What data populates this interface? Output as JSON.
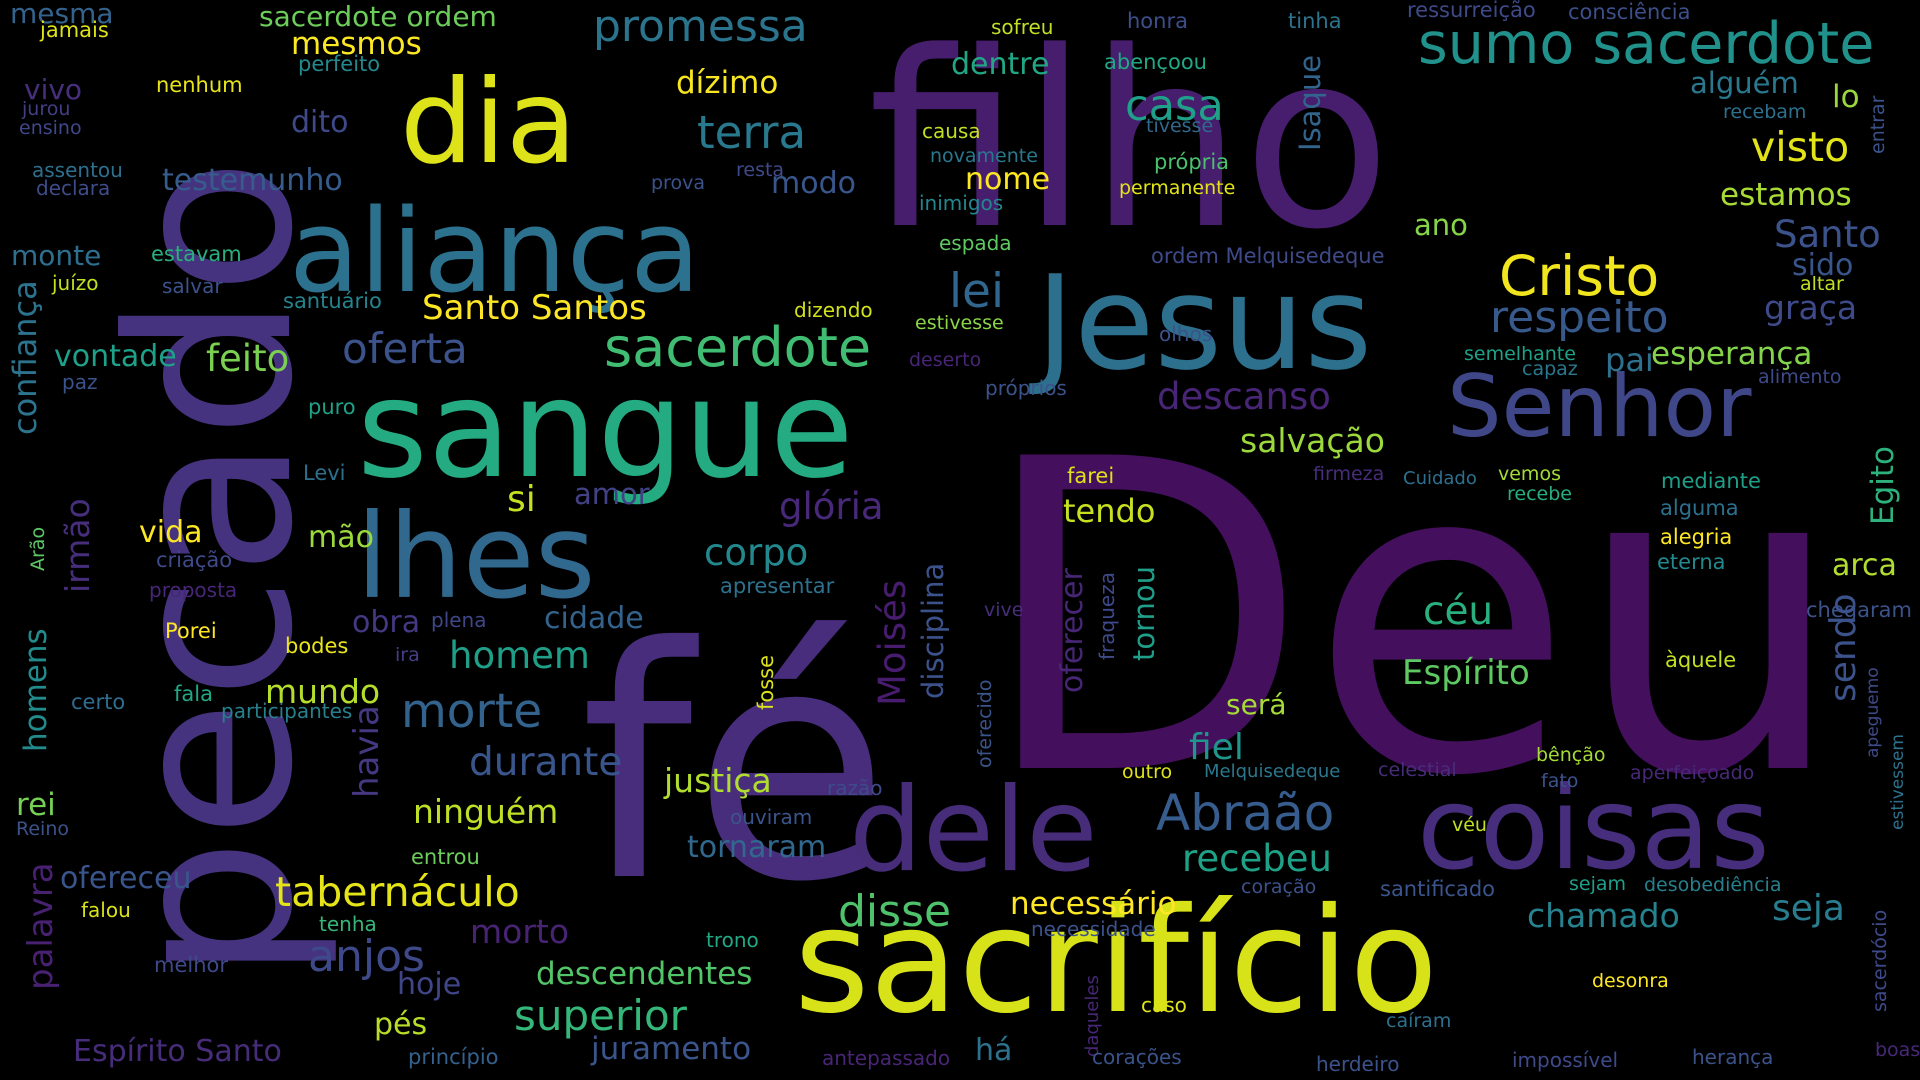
{
  "words": [
    {
      "text": "Deu",
      "color": "#440f5c"
    },
    {
      "text": "filho",
      "color": "#471d6e"
    },
    {
      "text": "fé",
      "color": "#472d7b"
    },
    {
      "text": "pecado",
      "color": "#46337f"
    },
    {
      "text": "sacrifício",
      "color": "#d7e219"
    },
    {
      "text": "sangue",
      "color": "#25ab82"
    },
    {
      "text": "Jesus",
      "color": "#2d708e"
    },
    {
      "text": "aliança",
      "color": "#2c728e"
    },
    {
      "text": "dia",
      "color": "#dde318"
    },
    {
      "text": "coisas",
      "color": "#462e7d"
    },
    {
      "text": "dele",
      "color": "#472c7a"
    },
    {
      "text": "lhes",
      "color": "#31688e"
    },
    {
      "text": "Senhor",
      "color": "#3f4788"
    },
    {
      "text": "sumo sacerdote",
      "color": "#21918c"
    },
    {
      "text": "sacerdote",
      "color": "#40bd72"
    },
    {
      "text": "Cristo",
      "color": "#f1e51d"
    },
    {
      "text": "promessa",
      "color": "#2b748e"
    },
    {
      "text": "terra",
      "color": "#29798e"
    },
    {
      "text": "Abraão",
      "color": "#365d8d"
    },
    {
      "text": "respeito",
      "color": "#38598c"
    },
    {
      "text": "casa",
      "color": "#1fa088"
    },
    {
      "text": "lei",
      "color": "#31678e"
    },
    {
      "text": "visto",
      "color": "#e2e418"
    },
    {
      "text": "morte",
      "color": "#33638d"
    },
    {
      "text": "oferta",
      "color": "#3b528b"
    },
    {
      "text": "feito",
      "color": "#7ad151"
    },
    {
      "text": "Santo Santos",
      "color": "#fde725"
    },
    {
      "text": "tabernáculo",
      "color": "#e5e419"
    },
    {
      "text": "disse",
      "color": "#4ec36b"
    },
    {
      "text": "superior",
      "color": "#35b779"
    },
    {
      "text": "anjos",
      "color": "#3e4989"
    },
    {
      "text": "descanso",
      "color": "#482576"
    },
    {
      "text": "glória",
      "color": "#482878"
    },
    {
      "text": "corpo",
      "color": "#23888e"
    },
    {
      "text": "salvação",
      "color": "#9bd93c"
    },
    {
      "text": "céu",
      "color": "#2ab07f"
    },
    {
      "text": "Espírito",
      "color": "#5ec962"
    },
    {
      "text": "durante",
      "color": "#39558c"
    },
    {
      "text": "homem",
      "color": "#1f9f88"
    },
    {
      "text": "mundo",
      "color": "#b5de2b"
    },
    {
      "text": "ninguém",
      "color": "#bddf26"
    },
    {
      "text": "justiça",
      "color": "#b0dd2f"
    },
    {
      "text": "recebeu",
      "color": "#1fa187"
    },
    {
      "text": "necessário",
      "color": "#fde725"
    },
    {
      "text": "chamado",
      "color": "#26828e"
    },
    {
      "text": "seja",
      "color": "#287d8e"
    },
    {
      "text": "sendo",
      "color": "#3b528b"
    },
    {
      "text": "fiel",
      "color": "#1f958b"
    },
    {
      "text": "descendentes",
      "color": "#52c569"
    },
    {
      "text": "juramento",
      "color": "#3a548c"
    },
    {
      "text": "pai",
      "color": "#2d718e"
    },
    {
      "text": "esperança",
      "color": "#84d44b"
    },
    {
      "text": "graça",
      "color": "#3e4a89"
    },
    {
      "text": "Santo",
      "color": "#3b528b"
    },
    {
      "text": "estamos",
      "color": "#a8db34"
    },
    {
      "text": "alguém",
      "color": "#2a788e"
    },
    {
      "text": "modo",
      "color": "#39568c"
    },
    {
      "text": "dízimo",
      "color": "#f8e621"
    },
    {
      "text": "mesmos",
      "color": "#fbe723"
    },
    {
      "text": "sacerdote ordem",
      "color": "#6ccd5a"
    },
    {
      "text": "dentre",
      "color": "#22a785"
    },
    {
      "text": "nome",
      "color": "#fde725"
    },
    {
      "text": "ano",
      "color": "#86d549"
    },
    {
      "text": "testemunho",
      "color": "#365c8d"
    },
    {
      "text": "dito",
      "color": "#3f4889"
    },
    {
      "text": "vida",
      "color": "#fde725"
    },
    {
      "text": "mão",
      "color": "#9bd93c"
    },
    {
      "text": "obra",
      "color": "#453882"
    },
    {
      "text": "cidade",
      "color": "#33638d"
    },
    {
      "text": "morto",
      "color": "#482374"
    },
    {
      "text": "hoje",
      "color": "#404588"
    },
    {
      "text": "pés",
      "color": "#b8de29"
    },
    {
      "text": "rei",
      "color": "#75d054"
    },
    {
      "text": "ofereceu",
      "color": "#39568c"
    },
    {
      "text": "si",
      "color": "#c5e021"
    },
    {
      "text": "amor",
      "color": "#424186"
    },
    {
      "text": "tendo",
      "color": "#c8e020"
    },
    {
      "text": "será",
      "color": "#a5db36"
    },
    {
      "text": "arca",
      "color": "#b0dd2f"
    },
    {
      "text": "lo",
      "color": "#98d83e"
    },
    {
      "text": "sido",
      "color": "#39568c"
    },
    {
      "text": "vontade",
      "color": "#1fa088"
    },
    {
      "text": "monte",
      "color": "#2e6e8e"
    },
    {
      "text": "vivo",
      "color": "#472f7d"
    },
    {
      "text": "mesma",
      "color": "#33638d"
    },
    {
      "text": "Espírito Santo",
      "color": "#472c7a"
    },
    {
      "text": "tornaram",
      "color": "#31688e"
    },
    {
      "text": "palavra",
      "color": "#482173"
    },
    {
      "text": "Moisés",
      "color": "#481c6e"
    },
    {
      "text": "havia",
      "color": "#453781"
    },
    {
      "text": "irmão",
      "color": "#472e7c"
    },
    {
      "text": "confiança",
      "color": "#2c738e"
    },
    {
      "text": "homens",
      "color": "#228c8d"
    },
    {
      "text": "disciplina",
      "color": "#3b528b"
    },
    {
      "text": "tornou",
      "color": "#1f9e89"
    },
    {
      "text": "oferecer",
      "color": "#482677"
    },
    {
      "text": "Isaque",
      "color": "#32658e"
    },
    {
      "text": "Egito",
      "color": "#2db27d"
    },
    {
      "text": "há",
      "color": "#2c728e"
    },
    {
      "text": "jamais",
      "color": "#dde318"
    },
    {
      "text": "nenhum",
      "color": "#e7e419"
    },
    {
      "text": "perfeito",
      "color": "#23898e"
    },
    {
      "text": "jurou",
      "color": "#433e85"
    },
    {
      "text": "ensino",
      "color": "#3f4889"
    },
    {
      "text": "assentou",
      "color": "#2d708e"
    },
    {
      "text": "declara",
      "color": "#3e4c8a"
    },
    {
      "text": "estavam",
      "color": "#29af7f"
    },
    {
      "text": "juízo",
      "color": "#c2df23"
    },
    {
      "text": "salvar",
      "color": "#3b528b"
    },
    {
      "text": "santuário",
      "color": "#25848e"
    },
    {
      "text": "paz",
      "color": "#3a538b"
    },
    {
      "text": "puro",
      "color": "#1fa187"
    },
    {
      "text": "Levi",
      "color": "#2d708e"
    },
    {
      "text": "Arão",
      "color": "#5cc863"
    },
    {
      "text": "criação",
      "color": "#3e4a89"
    },
    {
      "text": "proposta",
      "color": "#482677"
    },
    {
      "text": "Porei",
      "color": "#fde725"
    },
    {
      "text": "bodes",
      "color": "#eae51a"
    },
    {
      "text": "plena",
      "color": "#3f4788"
    },
    {
      "text": "ira",
      "color": "#433e85"
    },
    {
      "text": "certo",
      "color": "#2e6d8e"
    },
    {
      "text": "fala",
      "color": "#22a884"
    },
    {
      "text": "participantes",
      "color": "#27808e"
    },
    {
      "text": "Reino",
      "color": "#3b528b"
    },
    {
      "text": "entrou",
      "color": "#6ccd5a"
    },
    {
      "text": "falou",
      "color": "#d8e219"
    },
    {
      "text": "tenha",
      "color": "#35b779"
    },
    {
      "text": "melhor",
      "color": "#3e4989"
    },
    {
      "text": "princípio",
      "color": "#34618d"
    },
    {
      "text": "sofreu",
      "color": "#c0df25"
    },
    {
      "text": "honra",
      "color": "#3d4e8a"
    },
    {
      "text": "tinha",
      "color": "#2c738e"
    },
    {
      "text": "ressurreição",
      "color": "#3e4a89"
    },
    {
      "text": "consciência",
      "color": "#3c4f8a"
    },
    {
      "text": "abençoou",
      "color": "#22a884"
    },
    {
      "text": "causa",
      "color": "#c2df23"
    },
    {
      "text": "tivesse",
      "color": "#30698e"
    },
    {
      "text": "novamente",
      "color": "#2a788e"
    },
    {
      "text": "inimigos",
      "color": "#24868e"
    },
    {
      "text": "própria",
      "color": "#4ac16d"
    },
    {
      "text": "permanente",
      "color": "#e2e418"
    },
    {
      "text": "prova",
      "color": "#3b528b"
    },
    {
      "text": "resta",
      "color": "#3e4a89"
    },
    {
      "text": "espada",
      "color": "#5ec962"
    },
    {
      "text": "ordem Melquisedeque",
      "color": "#3e4a89"
    },
    {
      "text": "recebam",
      "color": "#2d708e"
    },
    {
      "text": "entrar",
      "color": "#3b528b"
    },
    {
      "text": "altar",
      "color": "#c2df23"
    },
    {
      "text": "dizendo",
      "color": "#d0e11c"
    },
    {
      "text": "estivesse",
      "color": "#8bd646"
    },
    {
      "text": "olhos",
      "color": "#3b528b"
    },
    {
      "text": "deserto",
      "color": "#482576"
    },
    {
      "text": "semelhante",
      "color": "#1fa187"
    },
    {
      "text": "capaz",
      "color": "#2a788e"
    },
    {
      "text": "alimento",
      "color": "#3e4a89"
    },
    {
      "text": "próprios",
      "color": "#3b528b"
    },
    {
      "text": "farei",
      "color": "#dde318"
    },
    {
      "text": "firmeza",
      "color": "#472d7b"
    },
    {
      "text": "Cuidado",
      "color": "#2d708e"
    },
    {
      "text": "vemos",
      "color": "#a5db36"
    },
    {
      "text": "recebe",
      "color": "#27ad81"
    },
    {
      "text": "mediante",
      "color": "#1f9f88"
    },
    {
      "text": "alguma",
      "color": "#2d708e"
    },
    {
      "text": "alegria",
      "color": "#fde725"
    },
    {
      "text": "eterna",
      "color": "#23898e"
    },
    {
      "text": "chegaram",
      "color": "#3b528b"
    },
    {
      "text": "àquele",
      "color": "#c2df23"
    },
    {
      "text": "apresentar",
      "color": "#2c728e"
    },
    {
      "text": "vive",
      "color": "#472e7c"
    },
    {
      "text": "fraqueza",
      "color": "#3e4a89"
    },
    {
      "text": "fosse",
      "color": "#dde318"
    },
    {
      "text": "oferecido",
      "color": "#3a538b"
    },
    {
      "text": "ouviram",
      "color": "#3a548c"
    },
    {
      "text": "razão",
      "color": "#3e4a89"
    },
    {
      "text": "outro",
      "color": "#dde318"
    },
    {
      "text": "Melquisedeque",
      "color": "#2a788e"
    },
    {
      "text": "celestial",
      "color": "#472d7b"
    },
    {
      "text": "bênção",
      "color": "#a5db36"
    },
    {
      "text": "fato",
      "color": "#3b528b"
    },
    {
      "text": "aperfeiçoado",
      "color": "#482878"
    },
    {
      "text": "apeguemo",
      "color": "#3e4a89"
    },
    {
      "text": "estivessem",
      "color": "#2c728e"
    },
    {
      "text": "véu",
      "color": "#c2df23"
    },
    {
      "text": "coração",
      "color": "#3b528b"
    },
    {
      "text": "santificado",
      "color": "#3a548c"
    },
    {
      "text": "sejam",
      "color": "#1f9f88"
    },
    {
      "text": "desobediência",
      "color": "#27808e"
    },
    {
      "text": "necessidade",
      "color": "#3b528b"
    },
    {
      "text": "trono",
      "color": "#22a884"
    },
    {
      "text": "sacerdócio",
      "color": "#3e4a89"
    },
    {
      "text": "daqueles",
      "color": "#482677"
    },
    {
      "text": "caso",
      "color": "#dde318"
    },
    {
      "text": "desonra",
      "color": "#fde725"
    },
    {
      "text": "caíram",
      "color": "#2d708e"
    },
    {
      "text": "antepassado",
      "color": "#482576"
    },
    {
      "text": "corações",
      "color": "#3a538b"
    },
    {
      "text": "herdeiro",
      "color": "#3b528b"
    },
    {
      "text": "impossível",
      "color": "#3e4a89"
    },
    {
      "text": "herança",
      "color": "#3b528b"
    },
    {
      "text": "boas",
      "color": "#482878"
    }
  ]
}
